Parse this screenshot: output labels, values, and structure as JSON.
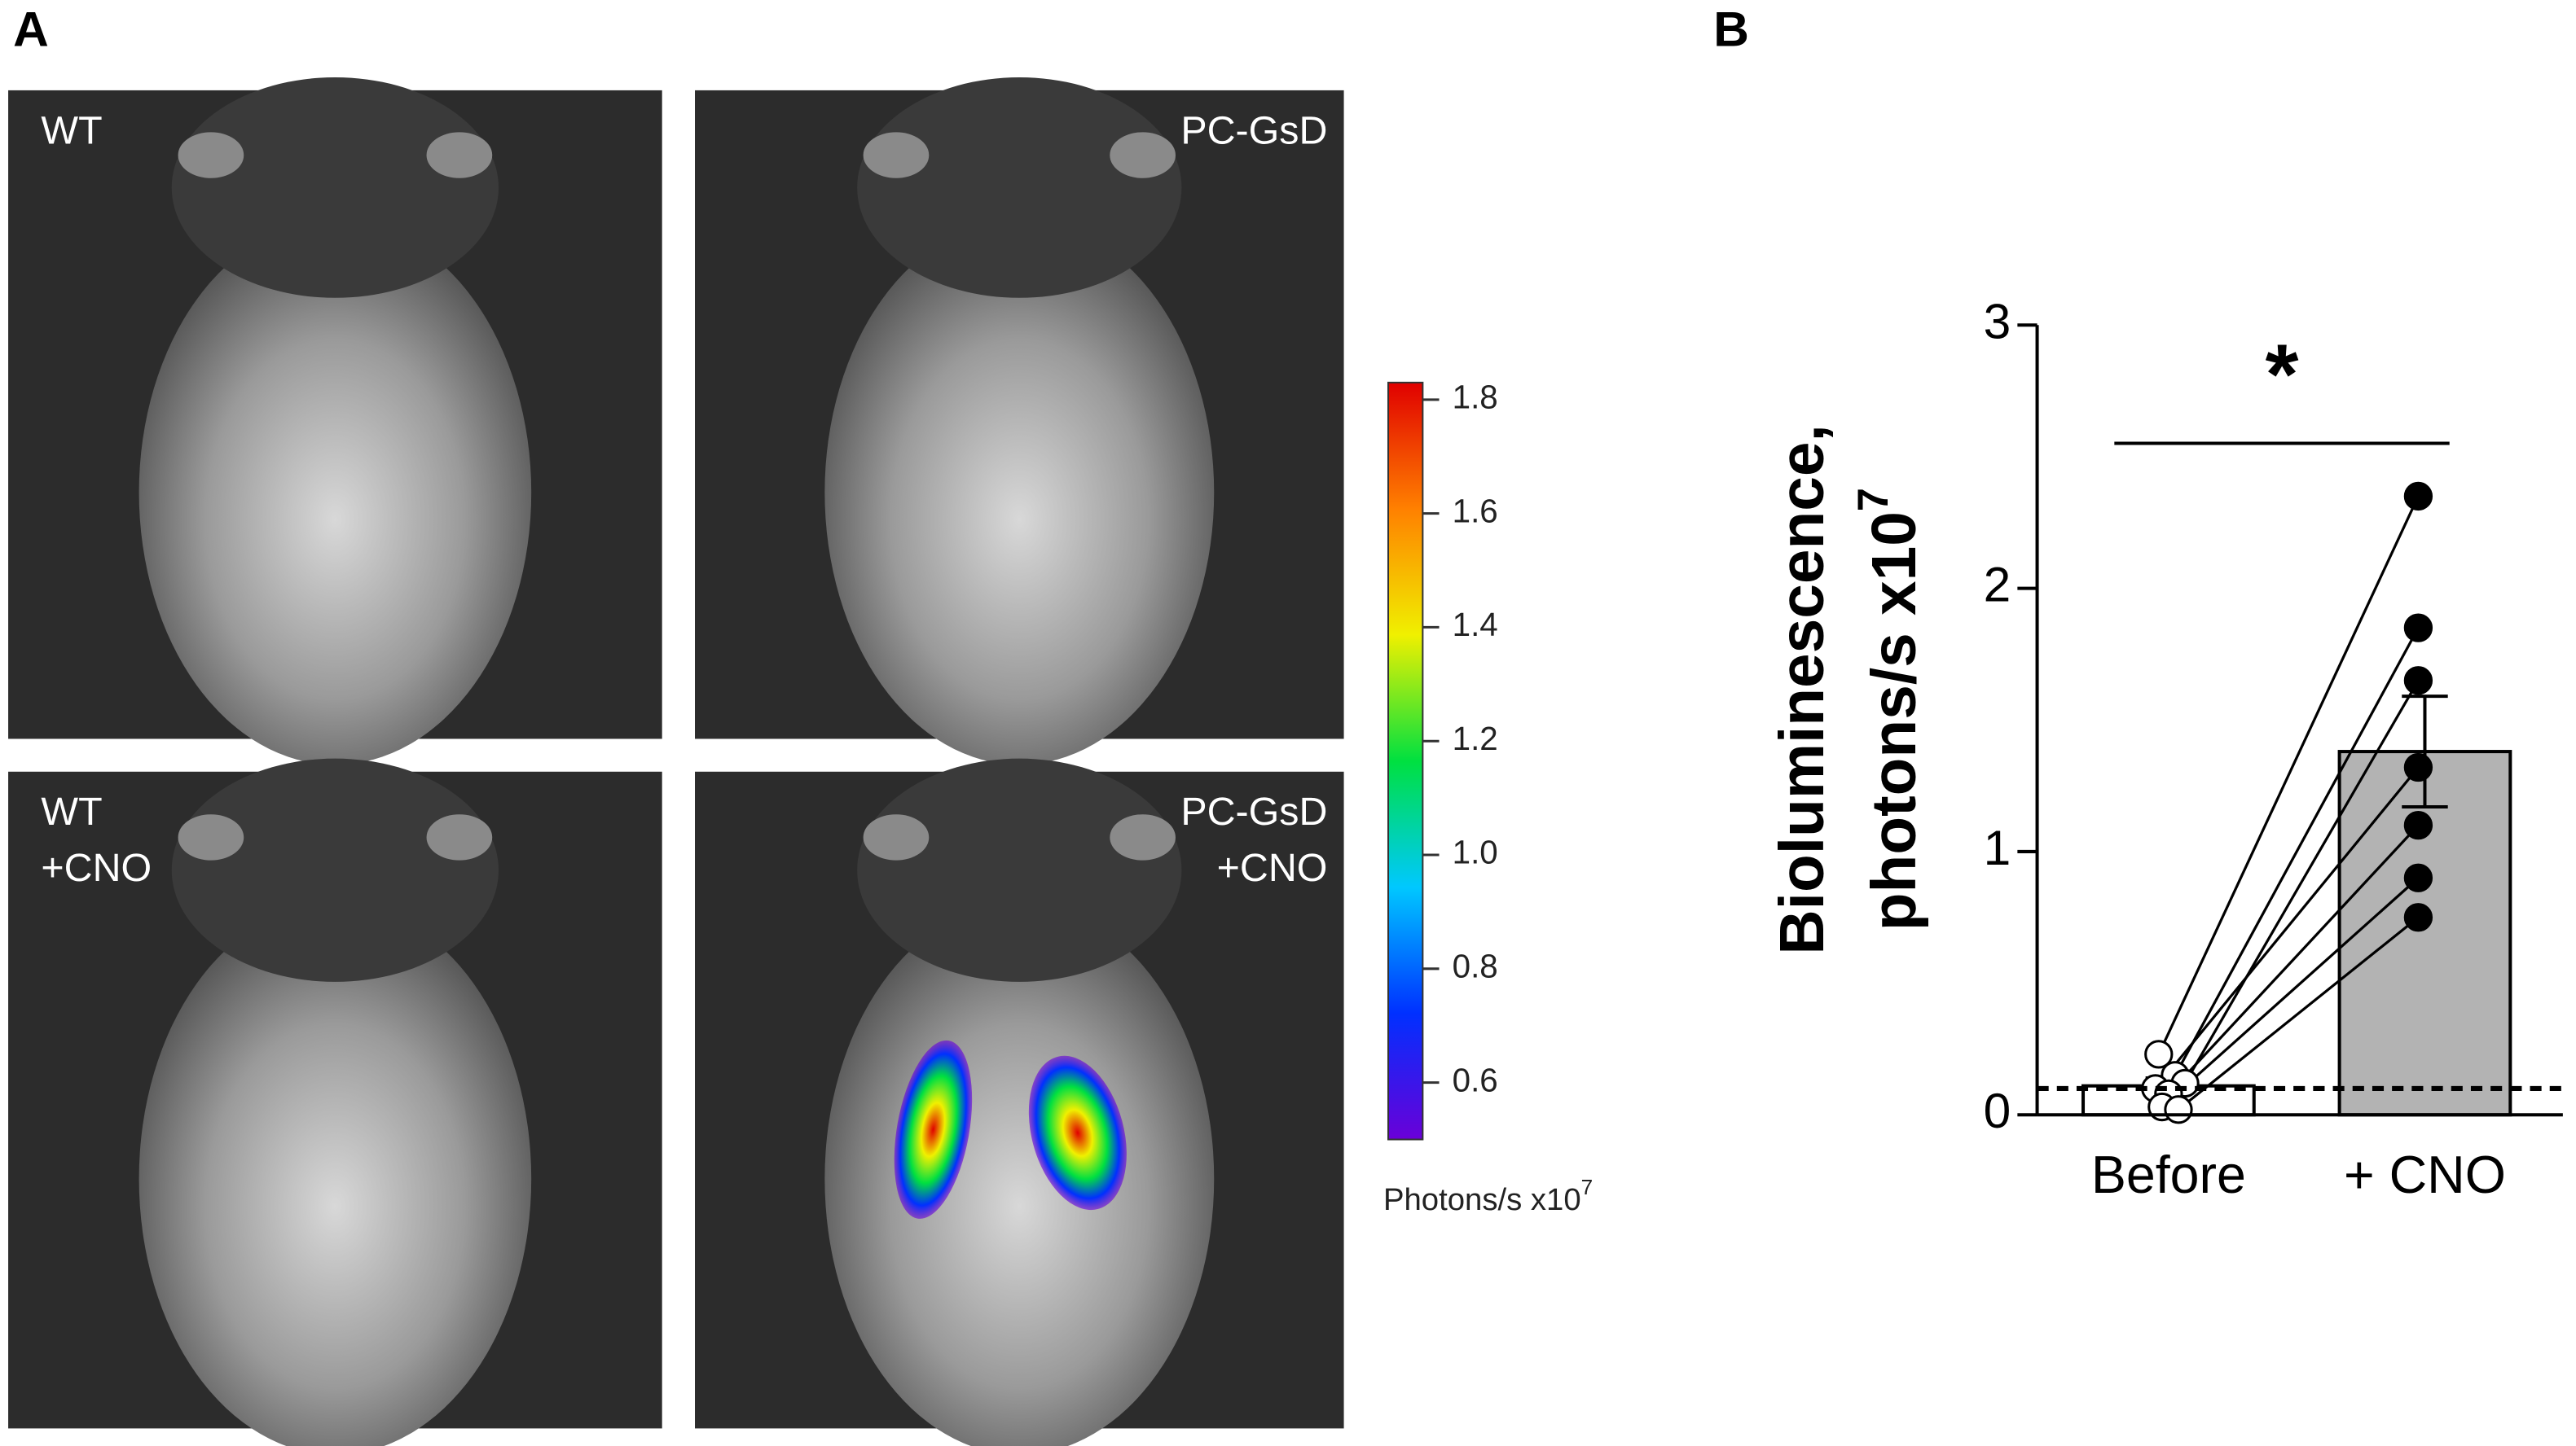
{
  "panels": {
    "a_label": "A",
    "b_label": "B",
    "images": [
      [
        "WT"
      ],
      [
        "PC-GsD"
      ],
      [
        "WT",
        "+CNO"
      ],
      [
        "PC-GsD",
        "+CNO"
      ]
    ]
  },
  "chart_data": [
    {
      "type": "colorbar",
      "label": "Photons/s x10",
      "label_exponent": "7",
      "clim": [
        0.5,
        1.83
      ],
      "ticks": [
        0.6,
        0.8,
        {
          "value": 1,
          "label": "1.0"
        },
        1.2,
        1.4,
        1.6,
        1.8
      ],
      "colors": [
        "#6a00d8",
        "#0030ff",
        "#00c8ff",
        "#00e040",
        "#f0f000",
        "#ff8000",
        "#e00000"
      ]
    },
    {
      "type": "bar",
      "categories": [
        "Before",
        "+ CNO"
      ],
      "values": [
        0.11,
        1.38
      ],
      "errors": [
        0.03,
        0.21
      ],
      "colors": [
        "#ffffff",
        "#b3b3b3"
      ],
      "points": [
        [
          0.23,
          0.15,
          0.12,
          0.1,
          0.08,
          0.03,
          0.02
        ],
        [
          2.35,
          1.85,
          1.65,
          1.32,
          1.1,
          0.9,
          0.75
        ]
      ],
      "ylabel": [
        "Bioluminescence,",
        "photons/s x10"
      ],
      "ylabel_exponent": "7",
      "reference_line": 0.1,
      "annotation": "*",
      "ylim": [
        0,
        3
      ],
      "yticks": [
        0,
        1,
        2,
        3
      ]
    }
  ]
}
